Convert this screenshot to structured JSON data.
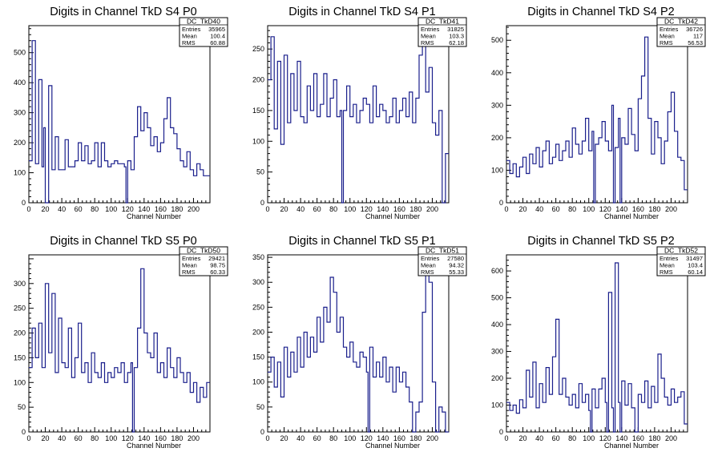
{
  "chart_data": [
    {
      "type": "line",
      "title": "Digits in Channel TkD S4 P0",
      "xlabel": "Channel Number",
      "ylabel": "",
      "xlim": [
        0,
        220
      ],
      "ylim": [
        0,
        590
      ],
      "xticks": [
        0,
        20,
        40,
        60,
        80,
        100,
        120,
        140,
        160,
        180,
        200
      ],
      "yticks": [
        0,
        100,
        200,
        300,
        400,
        500
      ],
      "stats": {
        "name": "DC_TkD40",
        "rows": [
          [
            "Entries",
            "35965"
          ],
          [
            "Mean",
            "100.4"
          ],
          [
            "RMS",
            "60.88"
          ]
        ]
      },
      "x": [
        0,
        4,
        8,
        12,
        16,
        18,
        20,
        24,
        28,
        32,
        36,
        40,
        44,
        48,
        52,
        56,
        60,
        64,
        68,
        72,
        76,
        80,
        84,
        88,
        92,
        96,
        100,
        104,
        108,
        112,
        116,
        118,
        120,
        124,
        128,
        132,
        136,
        140,
        144,
        148,
        152,
        156,
        160,
        164,
        168,
        172,
        176,
        180,
        184,
        188,
        192,
        196,
        200,
        204,
        208,
        212,
        216
      ],
      "values": [
        140,
        540,
        130,
        410,
        120,
        250,
        0,
        390,
        110,
        220,
        110,
        110,
        210,
        120,
        120,
        140,
        200,
        140,
        190,
        130,
        140,
        200,
        120,
        200,
        140,
        120,
        130,
        140,
        130,
        130,
        120,
        0,
        140,
        110,
        220,
        320,
        240,
        300,
        250,
        190,
        220,
        170,
        200,
        280,
        350,
        250,
        230,
        180,
        140,
        120,
        170,
        110,
        90,
        130,
        110,
        90,
        90
      ]
    },
    {
      "type": "line",
      "title": "Digits in Channel TkD S4 P1",
      "xlabel": "Channel Number",
      "ylabel": "",
      "xlim": [
        0,
        220
      ],
      "ylim": [
        0,
        288
      ],
      "xticks": [
        0,
        20,
        40,
        60,
        80,
        100,
        120,
        140,
        160,
        180,
        200
      ],
      "yticks": [
        0,
        50,
        100,
        150,
        200,
        250
      ],
      "stats": {
        "name": "DC_TkD41",
        "rows": [
          [
            "Entries",
            "31825"
          ],
          [
            "Mean",
            "103.3"
          ],
          [
            "RMS",
            "62.18"
          ]
        ]
      },
      "x": [
        0,
        4,
        8,
        12,
        16,
        20,
        24,
        28,
        32,
        36,
        40,
        44,
        48,
        52,
        56,
        60,
        64,
        68,
        72,
        76,
        80,
        84,
        88,
        90,
        92,
        96,
        100,
        104,
        108,
        112,
        116,
        120,
        124,
        128,
        132,
        136,
        140,
        144,
        148,
        152,
        156,
        160,
        164,
        168,
        172,
        176,
        180,
        184,
        188,
        192,
        196,
        200,
        204,
        208,
        212,
        216
      ],
      "values": [
        200,
        270,
        120,
        230,
        95,
        240,
        130,
        210,
        150,
        230,
        140,
        130,
        190,
        150,
        210,
        140,
        160,
        210,
        140,
        170,
        200,
        140,
        150,
        0,
        150,
        190,
        140,
        160,
        130,
        150,
        170,
        160,
        130,
        190,
        140,
        160,
        150,
        130,
        140,
        170,
        130,
        150,
        170,
        140,
        180,
        130,
        170,
        240,
        270,
        180,
        220,
        130,
        110,
        150,
        0,
        80
      ]
    },
    {
      "type": "line",
      "title": "Digits in Channel TkD S4 P2",
      "xlabel": "Channel Number",
      "ylabel": "",
      "xlim": [
        0,
        220
      ],
      "ylim": [
        0,
        545
      ],
      "xticks": [
        0,
        20,
        40,
        60,
        80,
        100,
        120,
        140,
        160,
        180,
        200
      ],
      "yticks": [
        0,
        100,
        200,
        300,
        400,
        500
      ],
      "stats": {
        "name": "DC_TkD42",
        "rows": [
          [
            "Entries",
            "36726"
          ],
          [
            "Mean",
            "117"
          ],
          [
            "RMS",
            "56.53"
          ]
        ]
      },
      "x": [
        0,
        4,
        8,
        12,
        16,
        20,
        24,
        28,
        32,
        36,
        40,
        44,
        48,
        52,
        56,
        60,
        64,
        68,
        72,
        76,
        80,
        84,
        88,
        92,
        96,
        100,
        104,
        106,
        108,
        112,
        116,
        120,
        124,
        128,
        130,
        132,
        136,
        138,
        140,
        144,
        148,
        152,
        156,
        160,
        164,
        168,
        172,
        176,
        180,
        184,
        188,
        192,
        196,
        200,
        204,
        208,
        212,
        216
      ],
      "values": [
        130,
        90,
        120,
        80,
        110,
        140,
        90,
        150,
        120,
        170,
        110,
        160,
        190,
        120,
        140,
        180,
        130,
        160,
        190,
        140,
        230,
        180,
        150,
        190,
        260,
        160,
        220,
        0,
        180,
        200,
        250,
        190,
        160,
        300,
        0,
        170,
        260,
        0,
        200,
        180,
        290,
        210,
        160,
        320,
        390,
        510,
        260,
        150,
        250,
        200,
        120,
        190,
        280,
        340,
        220,
        140,
        130,
        40
      ]
    },
    {
      "type": "line",
      "title": "Digits in Channel TkD S5 P0",
      "xlabel": "Channel Number",
      "ylabel": "",
      "xlim": [
        0,
        220
      ],
      "ylim": [
        0,
        358
      ],
      "xticks": [
        0,
        20,
        40,
        60,
        80,
        100,
        120,
        140,
        160,
        180,
        200
      ],
      "yticks": [
        0,
        50,
        100,
        150,
        200,
        250,
        300
      ],
      "stats": {
        "name": "DC_TkD50",
        "rows": [
          [
            "Entries",
            "29421"
          ],
          [
            "Mean",
            "98.75"
          ],
          [
            "RMS",
            "60.33"
          ]
        ]
      },
      "x": [
        0,
        4,
        8,
        12,
        16,
        20,
        24,
        28,
        32,
        36,
        40,
        44,
        48,
        52,
        56,
        60,
        64,
        68,
        72,
        76,
        80,
        84,
        88,
        92,
        96,
        100,
        104,
        108,
        112,
        116,
        120,
        124,
        126,
        128,
        132,
        136,
        140,
        144,
        148,
        152,
        156,
        160,
        164,
        168,
        172,
        176,
        180,
        184,
        188,
        192,
        196,
        200,
        204,
        208,
        212,
        216
      ],
      "values": [
        130,
        210,
        150,
        220,
        130,
        300,
        160,
        280,
        120,
        230,
        140,
        130,
        210,
        110,
        150,
        220,
        120,
        140,
        100,
        160,
        120,
        110,
        140,
        100,
        120,
        110,
        130,
        120,
        140,
        100,
        120,
        140,
        0,
        130,
        210,
        330,
        200,
        160,
        150,
        200,
        120,
        140,
        110,
        170,
        130,
        110,
        150,
        120,
        100,
        120,
        80,
        100,
        60,
        90,
        70,
        100
      ]
    },
    {
      "type": "line",
      "title": "Digits in Channel TkD S5 P1",
      "xlabel": "Channel Number",
      "ylabel": "",
      "xlim": [
        0,
        220
      ],
      "ylim": [
        0,
        355
      ],
      "xticks": [
        0,
        20,
        40,
        60,
        80,
        100,
        120,
        140,
        160,
        180,
        200
      ],
      "yticks": [
        0,
        50,
        100,
        150,
        200,
        250,
        300,
        350
      ],
      "stats": {
        "name": "DC_TkD51",
        "rows": [
          [
            "Entries",
            "27580"
          ],
          [
            "Mean",
            "94.32"
          ],
          [
            "RMS",
            "55.33"
          ]
        ]
      },
      "x": [
        0,
        4,
        8,
        12,
        16,
        20,
        24,
        28,
        32,
        36,
        40,
        44,
        48,
        52,
        56,
        60,
        64,
        68,
        72,
        76,
        80,
        84,
        88,
        92,
        96,
        100,
        104,
        108,
        112,
        116,
        120,
        122,
        124,
        128,
        132,
        136,
        140,
        144,
        148,
        152,
        156,
        160,
        164,
        168,
        172,
        176,
        180,
        184,
        188,
        192,
        196,
        200,
        204,
        208,
        212,
        216
      ],
      "values": [
        120,
        150,
        90,
        140,
        70,
        170,
        110,
        160,
        120,
        190,
        130,
        200,
        150,
        190,
        160,
        230,
        180,
        250,
        220,
        310,
        280,
        200,
        230,
        170,
        150,
        180,
        140,
        130,
        160,
        150,
        120,
        0,
        170,
        110,
        140,
        110,
        150,
        100,
        130,
        80,
        130,
        100,
        120,
        90,
        60,
        0,
        40,
        60,
        240,
        330,
        300,
        100,
        0,
        50,
        40,
        0
      ]
    },
    {
      "type": "line",
      "title": "Digits in Channel TkD S5 P2",
      "xlabel": "Channel Number",
      "ylabel": "",
      "xlim": [
        0,
        220
      ],
      "ylim": [
        0,
        660
      ],
      "xticks": [
        0,
        20,
        40,
        60,
        80,
        100,
        120,
        140,
        160,
        180,
        200
      ],
      "yticks": [
        0,
        100,
        200,
        300,
        400,
        500,
        600
      ],
      "stats": {
        "name": "DC_TkD52",
        "rows": [
          [
            "Entries",
            "31497"
          ],
          [
            "Mean",
            "103.4"
          ],
          [
            "RMS",
            "60.14"
          ]
        ]
      },
      "x": [
        0,
        4,
        8,
        12,
        16,
        20,
        24,
        28,
        32,
        36,
        40,
        44,
        48,
        52,
        56,
        60,
        64,
        68,
        72,
        76,
        80,
        84,
        88,
        92,
        96,
        100,
        102,
        104,
        108,
        112,
        116,
        120,
        122,
        124,
        128,
        130,
        132,
        136,
        138,
        140,
        144,
        148,
        152,
        156,
        160,
        164,
        168,
        172,
        176,
        180,
        184,
        188,
        192,
        196,
        200,
        204,
        208,
        212,
        216
      ],
      "values": [
        110,
        80,
        100,
        70,
        120,
        90,
        230,
        130,
        260,
        90,
        180,
        110,
        240,
        140,
        280,
        420,
        140,
        200,
        130,
        100,
        140,
        90,
        180,
        110,
        140,
        80,
        0,
        160,
        90,
        160,
        200,
        110,
        0,
        520,
        90,
        0,
        630,
        110,
        0,
        190,
        100,
        180,
        90,
        0,
        140,
        110,
        190,
        90,
        170,
        110,
        290,
        200,
        130,
        100,
        160,
        110,
        130,
        150,
        30
      ]
    }
  ]
}
